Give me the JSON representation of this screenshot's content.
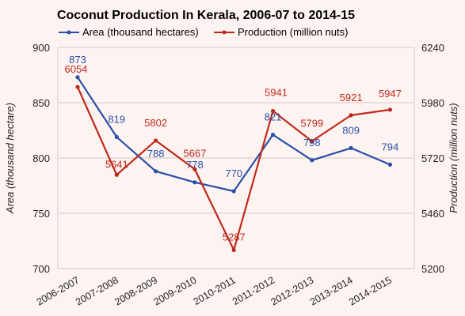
{
  "chart_data": {
    "type": "line",
    "title": "Coconut Production In Kerala, 2006-07 to 2014-15",
    "categories": [
      "2006-2007",
      "2007-2008",
      "2008-2009",
      "2009-2010",
      "2010-2011",
      "2011-2012",
      "2012-2013",
      "2013-2014",
      "2014-2015"
    ],
    "y_left": {
      "label": "Area (thousand hectare)",
      "ylim": [
        700,
        900
      ],
      "ticks": [
        700,
        750,
        800,
        850,
        900
      ]
    },
    "y_right": {
      "label": "Production (million nuts)",
      "ylim": [
        5200,
        6240
      ],
      "ticks": [
        5200,
        5460,
        5720,
        5980,
        6240
      ]
    },
    "series": [
      {
        "name": "Area (thousand hectares)",
        "axis": "left",
        "color": "#2a4fa8",
        "values": [
          873,
          819,
          788,
          778,
          770,
          821,
          798,
          809,
          794
        ]
      },
      {
        "name": "Production (million nuts)",
        "axis": "right",
        "color": "#c0281a",
        "values": [
          6054,
          5641,
          5802,
          5667,
          5287,
          5941,
          5799,
          5921,
          5947
        ]
      }
    ],
    "grid": true,
    "legend_position": "top"
  }
}
